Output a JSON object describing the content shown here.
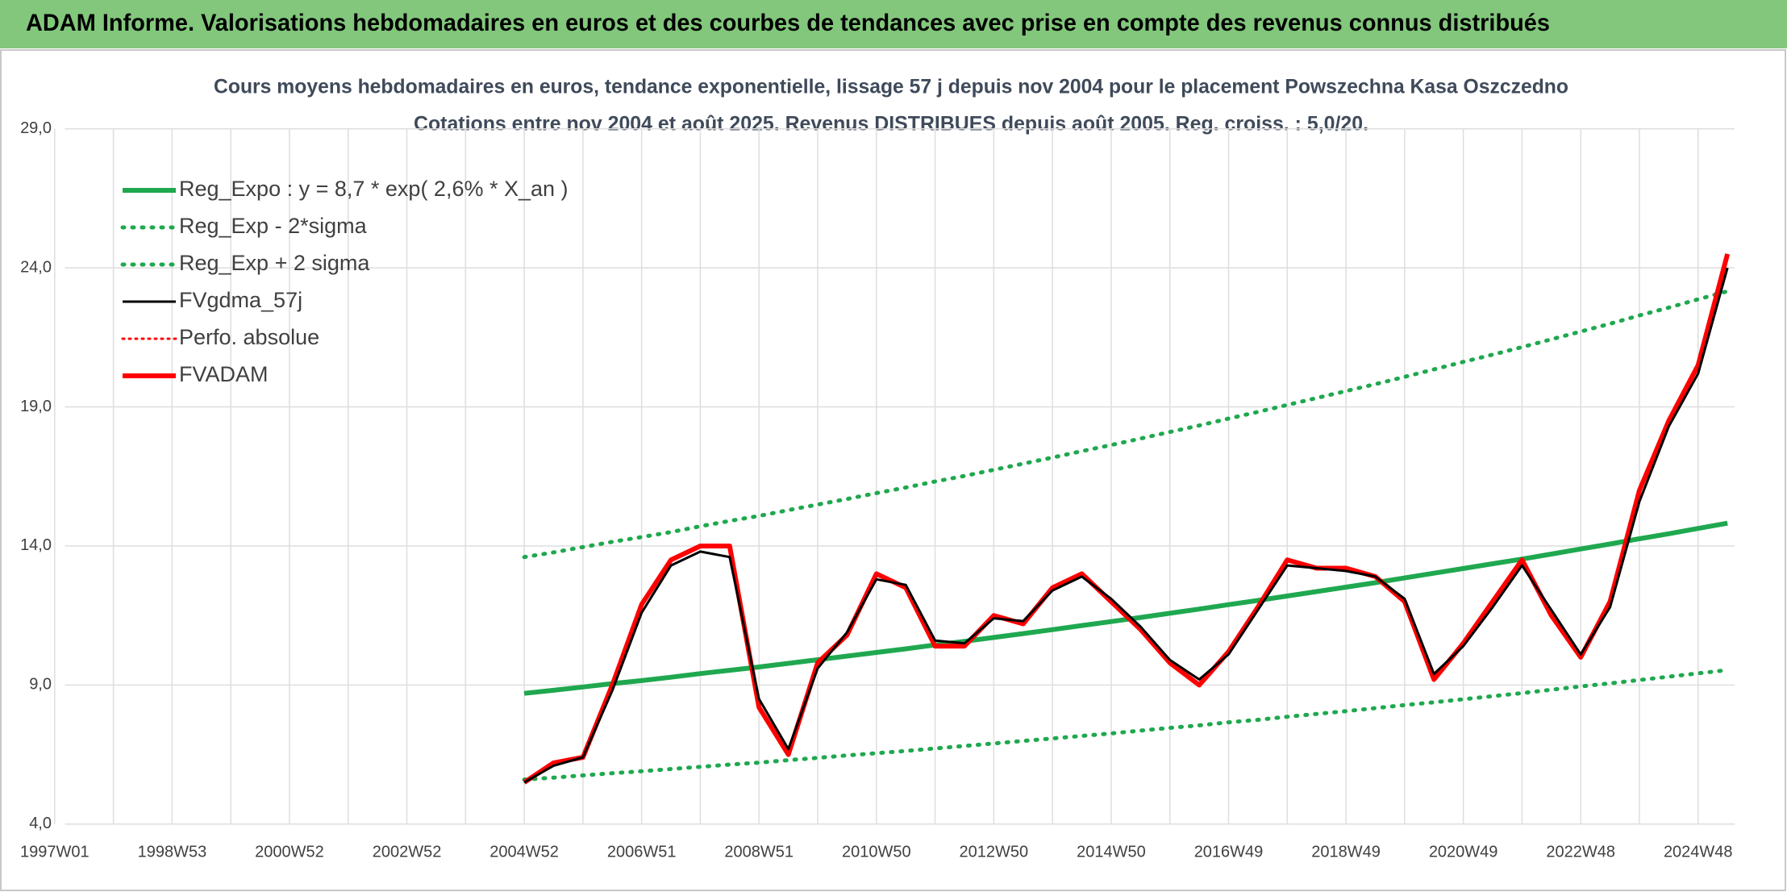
{
  "header": {
    "title": "ADAM Informe. Valorisations hebdomadaires en euros et des courbes de tendances avec prise en compte des revenus connus distribués"
  },
  "chart_data": {
    "type": "line",
    "title": "Cours moyens hebdomadaires en euros, tendance exponentielle, lissage 57 j depuis nov 2004 pour le placement Powszechna Kasa Oszczedno",
    "subtitle": "Cotations entre nov 2004 et août 2025. Revenus DISTRIBUES depuis août 2005. Reg. croiss. : 5,0/20.",
    "categories": [
      "1997W01",
      null,
      null,
      null,
      "1998W53",
      null,
      null,
      null,
      "2000W52",
      null,
      null,
      null,
      "2002W52",
      null,
      null,
      null,
      "2004W52",
      null,
      null,
      null,
      "2006W51",
      null,
      null,
      null,
      "2008W51",
      null,
      null,
      null,
      "2010W50",
      null,
      null,
      null,
      "2012W50",
      null,
      null,
      null,
      "2014W50",
      null,
      null,
      null,
      "2016W49",
      null,
      null,
      null,
      "2018W49",
      null,
      null,
      null,
      "2020W49",
      null,
      null,
      null,
      "2022W48",
      null,
      null,
      null,
      "2024W48",
      null
    ],
    "ylim": [
      4,
      29
    ],
    "yticks": [
      {
        "value": 4,
        "label": "4,0"
      },
      {
        "value": 9,
        "label": "9,0"
      },
      {
        "value": 14,
        "label": "14,0"
      },
      {
        "value": 19,
        "label": "19,0"
      },
      {
        "value": 24,
        "label": "24,0"
      },
      {
        "value": 29,
        "label": "29,0"
      }
    ],
    "grid": true,
    "legend": "top-left",
    "series": [
      {
        "name": "Reg_Expo : y = 8,7 * exp( 2,6% *  X_an )",
        "color": "#1fa84f",
        "dash": "solid",
        "width": 6,
        "values": [
          null,
          null,
          null,
          null,
          null,
          null,
          null,
          null,
          null,
          null,
          null,
          null,
          null,
          null,
          null,
          null,
          8.7,
          8.81,
          8.93,
          9.05,
          9.16,
          9.28,
          9.41,
          9.53,
          9.65,
          9.78,
          9.91,
          10.04,
          10.17,
          10.3,
          10.44,
          10.57,
          10.71,
          10.85,
          10.99,
          11.14,
          11.28,
          11.43,
          11.58,
          11.73,
          11.89,
          12.04,
          12.2,
          12.36,
          12.52,
          12.68,
          12.85,
          13.02,
          13.19,
          13.36,
          13.53,
          13.71,
          13.89,
          14.07,
          14.26,
          14.44,
          14.63,
          14.82
        ]
      },
      {
        "name": "Reg_Exp - 2*sigma",
        "color": "#1fa84f",
        "dash": "dotted",
        "width": 5,
        "values": [
          null,
          null,
          null,
          null,
          null,
          null,
          null,
          null,
          null,
          null,
          null,
          null,
          null,
          null,
          null,
          null,
          5.6,
          5.67,
          5.75,
          5.83,
          5.9,
          5.98,
          6.06,
          6.14,
          6.21,
          6.3,
          6.38,
          6.47,
          6.55,
          6.63,
          6.72,
          6.81,
          6.9,
          6.99,
          7.08,
          7.17,
          7.26,
          7.36,
          7.46,
          7.55,
          7.66,
          7.75,
          7.86,
          7.96,
          8.06,
          8.17,
          8.28,
          8.38,
          8.49,
          8.6,
          8.71,
          8.83,
          8.95,
          9.06,
          9.18,
          9.3,
          9.42,
          9.54
        ]
      },
      {
        "name": "Reg_Exp + 2 sigma",
        "color": "#1fa84f",
        "dash": "dotted",
        "width": 5,
        "values": [
          null,
          null,
          null,
          null,
          null,
          null,
          null,
          null,
          null,
          null,
          null,
          null,
          null,
          null,
          null,
          null,
          13.6,
          13.77,
          13.96,
          14.15,
          14.32,
          14.5,
          14.71,
          14.9,
          15.08,
          15.29,
          15.49,
          15.69,
          15.9,
          16.1,
          16.32,
          16.52,
          16.74,
          16.96,
          17.18,
          17.41,
          17.63,
          17.86,
          18.1,
          18.33,
          18.58,
          18.82,
          19.07,
          19.32,
          19.57,
          19.82,
          20.08,
          20.35,
          20.62,
          20.88,
          21.15,
          21.43,
          21.71,
          21.99,
          22.29,
          22.57,
          22.87,
          23.16
        ]
      },
      {
        "name": "FVgdma_57j",
        "color": "#000000",
        "dash": "solid",
        "width": 3,
        "values": [
          null,
          null,
          null,
          null,
          null,
          null,
          null,
          null,
          null,
          null,
          null,
          null,
          null,
          null,
          null,
          null,
          5.5,
          6.1,
          6.4,
          8.8,
          11.6,
          13.3,
          13.8,
          13.6,
          8.5,
          6.7,
          9.6,
          10.9,
          12.8,
          12.6,
          10.6,
          10.5,
          11.4,
          11.3,
          12.4,
          12.9,
          12.1,
          11.1,
          9.9,
          9.2,
          10.1,
          11.7,
          13.3,
          13.2,
          13.1,
          12.9,
          12.1,
          9.4,
          10.4,
          11.8,
          13.3,
          11.7,
          10.1,
          11.8,
          15.6,
          18.3,
          20.2,
          24.0
        ]
      },
      {
        "name": "Perfo. absolue",
        "color": "#ff0000",
        "dash": "dotted",
        "width": 3,
        "values": [
          null,
          null,
          null,
          null,
          null,
          null,
          null,
          null,
          null,
          null,
          null,
          null,
          null,
          null,
          null,
          null,
          null,
          null,
          null,
          null,
          null,
          null,
          null,
          null,
          null,
          null,
          null,
          null,
          null,
          null,
          null,
          null,
          null,
          null,
          null,
          null,
          null,
          null,
          null,
          null,
          null,
          null,
          null,
          null,
          null,
          null,
          null,
          null,
          null,
          null,
          null,
          null,
          null,
          null,
          null,
          null,
          null,
          null
        ]
      },
      {
        "name": "FVADAM",
        "color": "#ff0000",
        "dash": "solid",
        "width": 6,
        "values": [
          null,
          null,
          null,
          null,
          null,
          null,
          null,
          null,
          null,
          null,
          null,
          null,
          null,
          null,
          null,
          null,
          5.5,
          6.2,
          6.4,
          9.0,
          11.9,
          13.5,
          14.0,
          14.0,
          8.2,
          6.5,
          9.8,
          10.8,
          13.0,
          12.5,
          10.4,
          10.4,
          11.5,
          11.2,
          12.5,
          13.0,
          12.0,
          11.0,
          9.8,
          9.0,
          10.2,
          11.8,
          13.5,
          13.2,
          13.2,
          12.9,
          12.0,
          9.2,
          10.5,
          12.0,
          13.5,
          11.5,
          10.0,
          12.0,
          16.0,
          18.5,
          20.5,
          24.5
        ]
      }
    ]
  }
}
